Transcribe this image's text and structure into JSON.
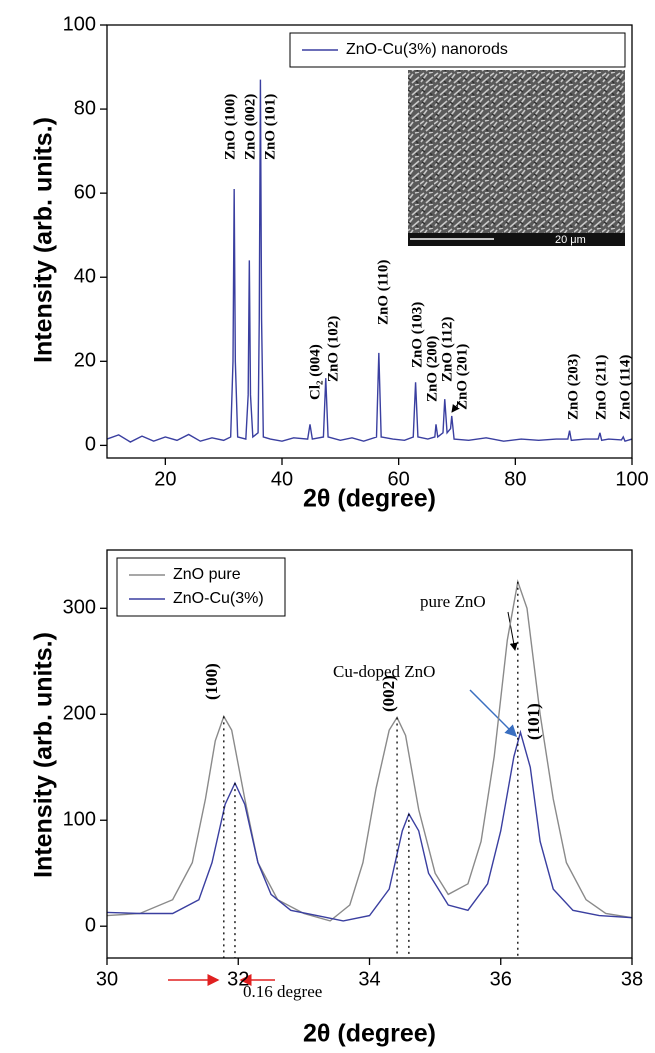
{
  "chart_data": [
    {
      "type": "line",
      "xlabel": "2θ (degree)",
      "ylabel": "Intensity (arb. units.)",
      "xlim": [
        10,
        100
      ],
      "ylim": [
        -3,
        100
      ],
      "xticks": [
        20,
        40,
        60,
        80,
        100
      ],
      "yticks": [
        0,
        20,
        40,
        60,
        80,
        100
      ],
      "series": [
        {
          "name": "ZnO-Cu(3%) nanorods",
          "color": "#3a3fa0",
          "x": [
            10,
            12,
            14,
            16,
            18,
            20,
            22,
            24,
            26,
            28,
            30,
            31.2,
            31.6,
            31.8,
            32.0,
            32.4,
            33.8,
            34.2,
            34.4,
            34.6,
            35.0,
            35.9,
            36.1,
            36.3,
            36.5,
            36.8,
            38,
            40,
            42,
            44.4,
            44.8,
            45.2,
            47.1,
            47.5,
            47.9,
            50,
            52,
            54,
            56.2,
            56.6,
            57.0,
            59,
            61,
            62.5,
            62.9,
            63.3,
            65,
            66.2,
            66.4,
            66.7,
            67.6,
            67.9,
            68.3,
            68.9,
            69.1,
            69.5,
            72,
            75,
            78,
            81,
            84,
            87,
            89.0,
            89.3,
            89.6,
            92,
            94.2,
            94.5,
            94.8,
            96,
            98.2,
            98.5,
            98.8,
            100
          ],
          "values": [
            1.5,
            2.5,
            0.8,
            2.2,
            1.0,
            2.0,
            1.2,
            2.6,
            1.0,
            1.8,
            1.2,
            2,
            20,
            61,
            20,
            2,
            1.5,
            12,
            44,
            12,
            2,
            3,
            30,
            87,
            30,
            2,
            1.5,
            1.0,
            1.8,
            1.5,
            5,
            1.5,
            2,
            16,
            2,
            1.2,
            1.8,
            1.0,
            2,
            22,
            2,
            1.5,
            1.2,
            2,
            15,
            2,
            1.5,
            2,
            5,
            2,
            3,
            11,
            3,
            4,
            7,
            1.5,
            1.2,
            1.8,
            1.0,
            1.5,
            1.2,
            1.5,
            1.5,
            3.5,
            1.2,
            1.5,
            1.5,
            3,
            1.2,
            1.5,
            1.3,
            2,
            1.0,
            1.5
          ]
        }
      ],
      "legend": "upper right",
      "annotations": [
        "ZnO (100)",
        "ZnO (002)",
        "ZnO (101)",
        "Cl₂ (004)",
        "ZnO (102)",
        "ZnO (110)",
        "ZnO (103)",
        "ZnO (200)",
        "ZnO (112)",
        "ZnO (201)",
        "ZnO (203)",
        "ZnO (211)",
        "ZnO (114)"
      ],
      "inset_label": "20 μm"
    },
    {
      "type": "line",
      "xlabel": "2θ (degree)",
      "ylabel": "Intensity (arb. units.)",
      "xlim": [
        30,
        38
      ],
      "ylim": [
        -30,
        355
      ],
      "xticks": [
        30,
        32,
        34,
        36,
        38
      ],
      "yticks": [
        0,
        100,
        200,
        300
      ],
      "series": [
        {
          "name": "ZnO pure",
          "color": "#8a8a8a",
          "x": [
            30,
            30.5,
            31,
            31.3,
            31.5,
            31.65,
            31.78,
            31.9,
            32.1,
            32.3,
            32.6,
            33,
            33.4,
            33.7,
            33.9,
            34.1,
            34.3,
            34.42,
            34.55,
            34.75,
            35,
            35.2,
            35.5,
            35.7,
            35.9,
            36.1,
            36.26,
            36.4,
            36.6,
            36.8,
            37,
            37.3,
            37.6,
            38
          ],
          "values": [
            10,
            12,
            25,
            60,
            120,
            175,
            198,
            185,
            120,
            60,
            25,
            12,
            5,
            20,
            60,
            130,
            185,
            197,
            180,
            110,
            50,
            30,
            40,
            80,
            160,
            270,
            325,
            300,
            200,
            120,
            60,
            25,
            12,
            8
          ]
        },
        {
          "name": "ZnO-Cu(3%)",
          "color": "#3a3fa0",
          "x": [
            30,
            30.5,
            31,
            31.4,
            31.6,
            31.8,
            31.95,
            32.1,
            32.3,
            32.5,
            32.8,
            33.2,
            33.6,
            34.0,
            34.3,
            34.5,
            34.6,
            34.75,
            34.9,
            35.2,
            35.5,
            35.8,
            36.0,
            36.2,
            36.3,
            36.45,
            36.6,
            36.8,
            37.1,
            37.5,
            38
          ],
          "values": [
            13,
            12,
            12,
            25,
            60,
            115,
            135,
            115,
            60,
            30,
            15,
            10,
            5,
            10,
            35,
            90,
            106,
            90,
            50,
            20,
            15,
            40,
            90,
            160,
            183,
            150,
            80,
            35,
            15,
            10,
            8
          ]
        }
      ],
      "legend": "upper left",
      "peak_lines": [
        31.78,
        31.95,
        34.42,
        34.6,
        36.26
      ],
      "annotations": [
        "(100)",
        "(002)",
        "(101)",
        "pure ZnO",
        "Cu-doped ZnO",
        "0.16 degree"
      ]
    }
  ]
}
